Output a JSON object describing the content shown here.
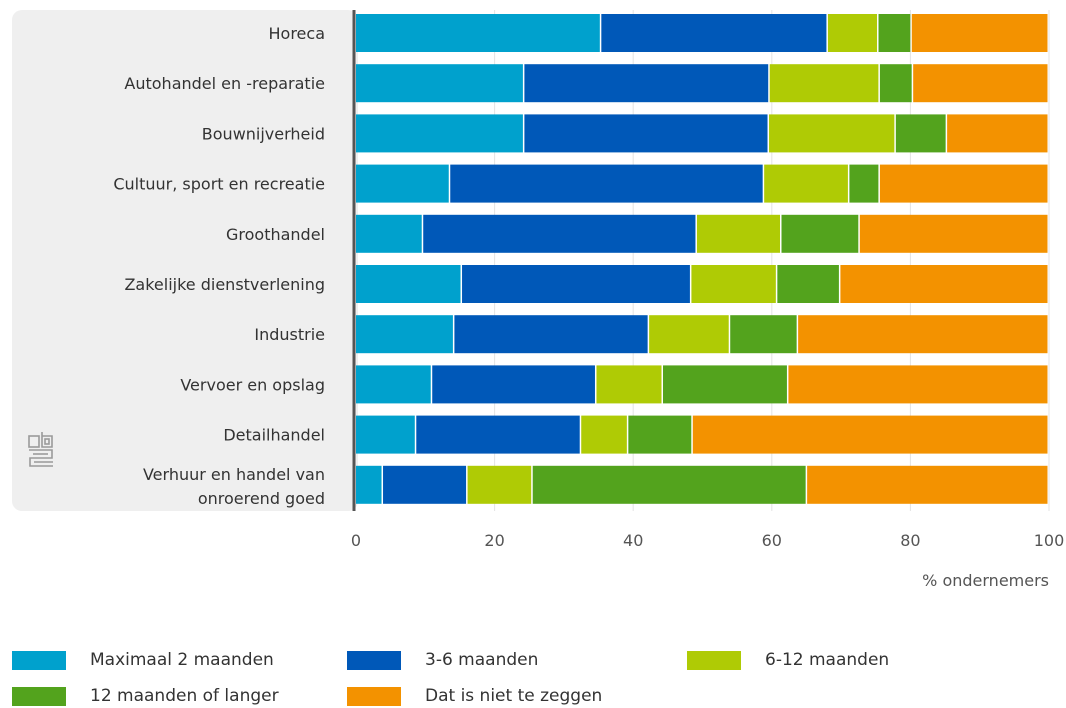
{
  "chart_data": {
    "type": "bar",
    "orientation": "horizontal",
    "stacked": true,
    "categories": [
      "Horeca",
      "Autohandel en -reparatie",
      "Bouwnijverheid",
      "Cultuur, sport en recreatie",
      "Groothandel",
      "Zakelijke dienstverlening",
      "Industrie",
      "Vervoer en opslag",
      "Detailhandel",
      "Verhuur en handel van onroerend goed"
    ],
    "series": [
      {
        "name": "Maximaal 2 maanden",
        "color": "#00a1cd",
        "values": [
          35.4,
          24.3,
          24.3,
          13.6,
          9.7,
          15.3,
          14.2,
          11.0,
          8.7,
          3.9
        ]
      },
      {
        "name": "3-6 maanden",
        "color": "#0058b8",
        "values": [
          32.7,
          35.4,
          35.3,
          45.3,
          39.5,
          33.1,
          28.1,
          23.7,
          23.8,
          12.2
        ]
      },
      {
        "name": "6-12 maanden",
        "color": "#afcb05",
        "values": [
          7.3,
          15.9,
          18.3,
          12.3,
          12.2,
          12.4,
          11.7,
          9.6,
          6.8,
          9.4
        ]
      },
      {
        "name": "12 maanden of langer",
        "color": "#53a31d",
        "values": [
          4.8,
          4.8,
          7.4,
          4.4,
          11.3,
          9.1,
          9.8,
          18.1,
          9.3,
          39.6
        ]
      },
      {
        "name": "Dat is niet te zeggen",
        "color": "#f39200",
        "values": [
          19.8,
          19.6,
          14.7,
          24.4,
          27.3,
          30.1,
          36.2,
          37.6,
          51.4,
          34.9
        ]
      }
    ],
    "xlabel": "% ondernemers",
    "xlim": [
      0,
      100
    ],
    "xticks": [
      "0",
      "20",
      "40",
      "60",
      "80",
      "100"
    ],
    "grid": true,
    "legend_position": "bottom",
    "logo_icon": "cbs-logo-icon"
  }
}
